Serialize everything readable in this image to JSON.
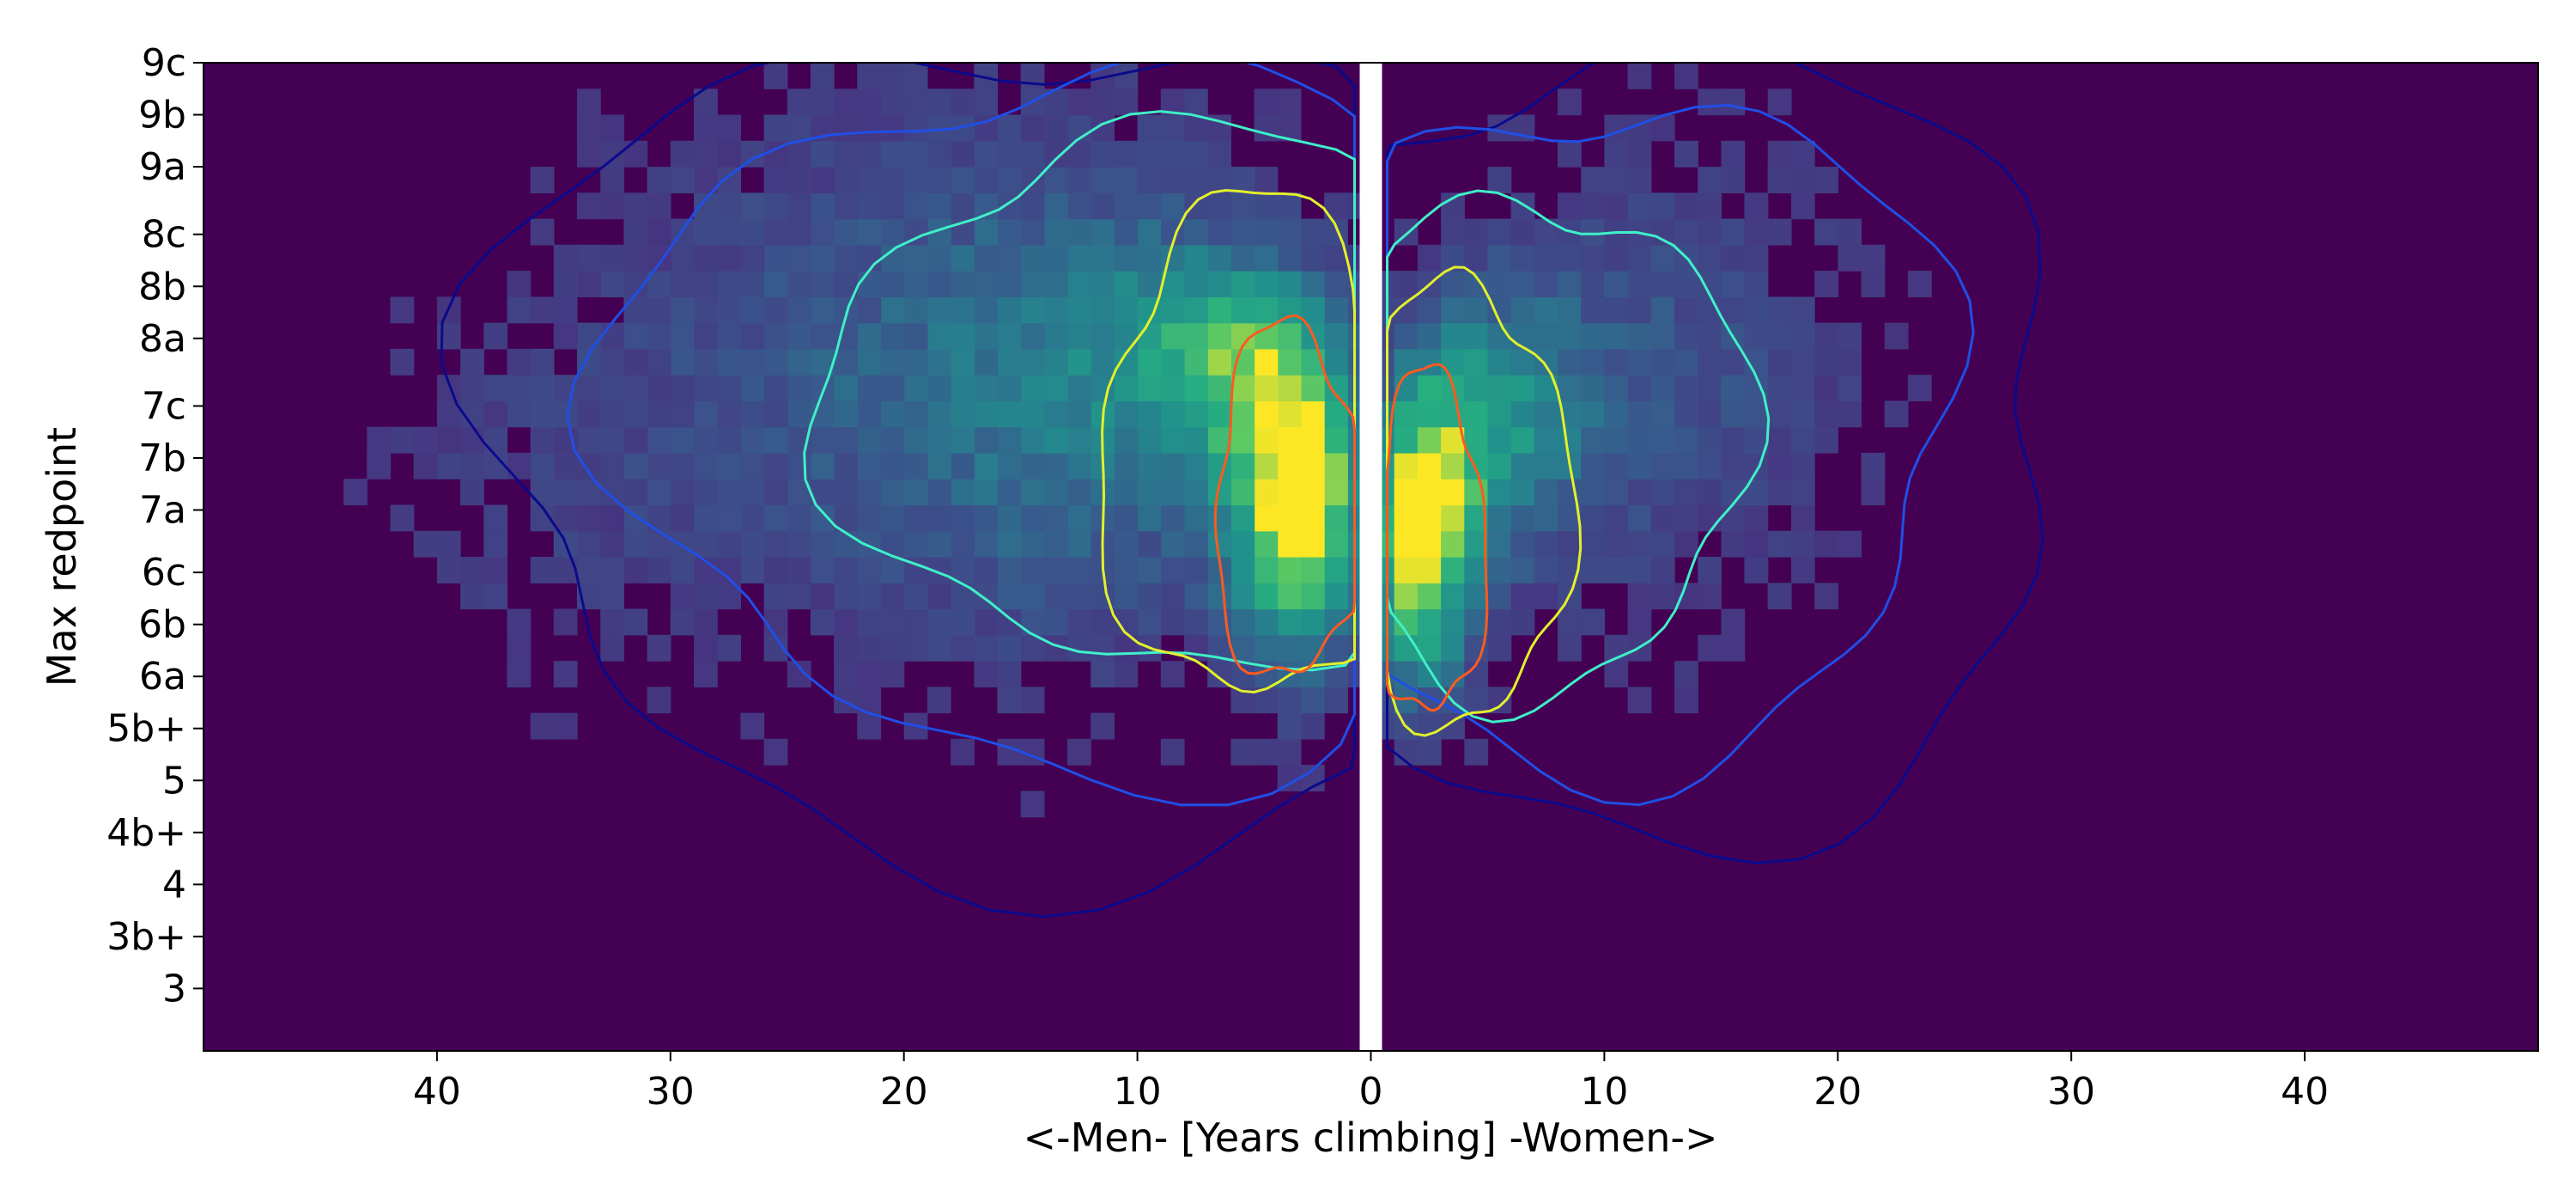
{
  "chart_data": {
    "type": "heatmap",
    "title": "",
    "xlabel": "<-Men-  [Years climbing]  -Women->",
    "ylabel": "Max redpoint",
    "x_ticks": [
      "40",
      "30",
      "20",
      "10",
      "0",
      "10",
      "20",
      "30",
      "40"
    ],
    "x_tick_values": [
      -40,
      -30,
      -20,
      -10,
      0,
      10,
      20,
      30,
      40
    ],
    "xlim": [
      -50,
      50
    ],
    "y_ticks": [
      "3",
      "3b+",
      "4",
      "4b+",
      "5",
      "5b+",
      "6a",
      "6b",
      "6c",
      "7a",
      "7b",
      "7c",
      "8a",
      "8b",
      "8c",
      "9a",
      "9b",
      "9c"
    ],
    "y_tick_values": [
      1.0,
      2.0,
      3.0,
      4.0,
      5.0,
      6.0,
      7.0,
      8.0,
      9.0,
      10.2,
      11.2,
      12.2,
      13.5,
      14.5,
      15.5,
      16.8,
      17.8,
      18.8
    ],
    "ylim": [
      -0.2,
      18.8
    ],
    "colormap": {
      "background": "#440154",
      "low": "#3b528b",
      "mid": "#21918c",
      "high": "#5ec962",
      "peak": "#fde725"
    },
    "contour_colors": [
      "#0a0a8c",
      "#1f4fe6",
      "#3ff0c8",
      "#e3f02a",
      "#ff5a1f"
    ],
    "density_peaks": [
      {
        "side": "men",
        "years": 3,
        "grade_value": 10.2,
        "level": "peak"
      },
      {
        "side": "men",
        "years": 6,
        "grade_value": 13.3,
        "level": "high"
      },
      {
        "side": "women",
        "years": 2,
        "grade_value": 9.5,
        "level": "peak"
      },
      {
        "side": "women",
        "years": 5,
        "grade_value": 12.0,
        "level": "high"
      }
    ],
    "separator_at_x": 0,
    "grid": false,
    "legend": "none"
  }
}
